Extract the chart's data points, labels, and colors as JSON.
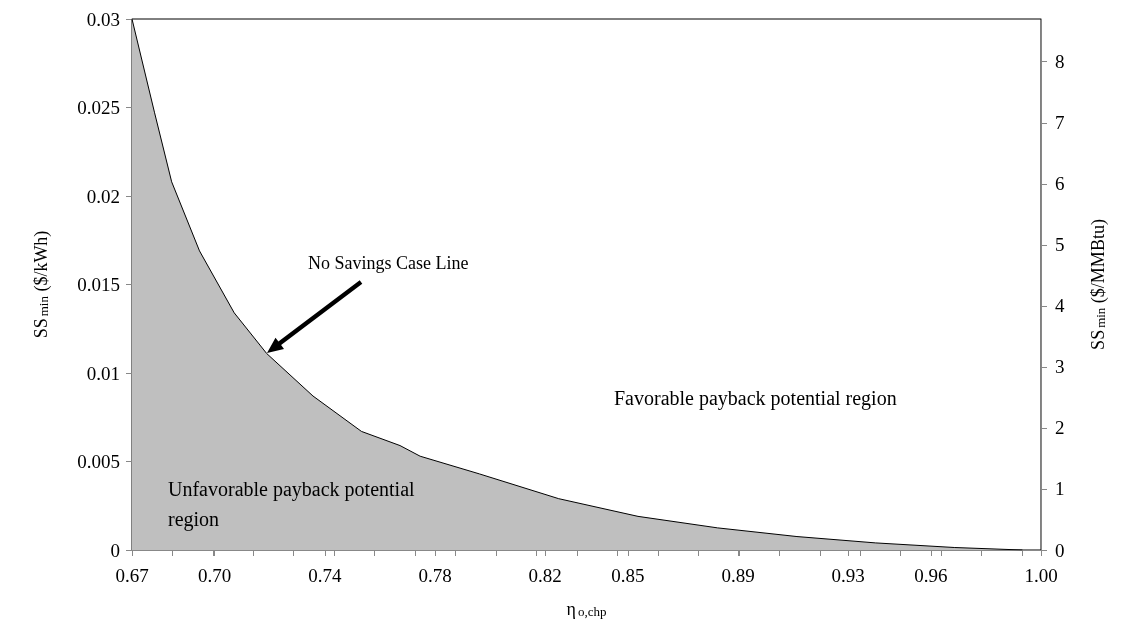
{
  "chart_data": {
    "type": "area",
    "xlabel": "η$_{o,chp}$",
    "ylabel": "SS$_{min}$ ($/kWh)",
    "y2label": "SS$_{min}$ ($/MMBtu)",
    "x": [
      0.67,
      0.6782,
      0.6844,
      0.6945,
      0.7071,
      0.7189,
      0.7357,
      0.7533,
      0.7673,
      0.7746,
      0.7961,
      0.8249,
      0.8537,
      0.8826,
      0.9114,
      0.94,
      0.9687,
      0.9931
    ],
    "series": [
      {
        "color": "#bfbfbf",
        "values": [
          0.03,
          0.0247,
          0.0208,
          0.0169,
          0.0134,
          0.0111,
          0.0087,
          0.0067,
          0.0059,
          0.0053,
          0.0043,
          0.0029,
          0.0019,
          0.00125,
          0.00076,
          0.0004,
          0.00014,
          0
        ]
      }
    ],
    "xlim": [
      0.67,
      1.0
    ],
    "xticks": [
      0.67,
      {
        "value": 0.6847,
        "label": null
      },
      {
        "value": 0.6994,
        "label": null
      },
      {
        "value": 0.7,
        "label": "0.70"
      },
      {
        "value": 0.7141,
        "label": null
      },
      {
        "value": 0.7287,
        "label": null
      },
      {
        "value": 0.74,
        "label": "0.74"
      },
      {
        "value": 0.7434,
        "label": null
      },
      {
        "value": 0.7581,
        "label": null
      },
      {
        "value": 0.7728,
        "label": null
      },
      {
        "value": 0.78,
        "label": "0.78"
      },
      {
        "value": 0.7875,
        "label": null
      },
      {
        "value": 0.8022,
        "label": null
      },
      {
        "value": 0.8169,
        "label": null
      },
      {
        "value": 0.82,
        "label": "0.82"
      },
      {
        "value": 0.8315,
        "label": null
      },
      {
        "value": 0.85,
        "label": "0.85"
      },
      {
        "value": 0.8462,
        "label": null
      },
      {
        "value": 0.8609,
        "label": null
      },
      {
        "value": 0.8756,
        "label": null
      },
      {
        "value": 0.89,
        "label": "0.89"
      },
      {
        "value": 0.8903,
        "label": null
      },
      {
        "value": 0.905,
        "label": null
      },
      {
        "value": 0.9197,
        "label": null
      },
      {
        "value": 0.93,
        "label": "0.93"
      },
      {
        "value": 0.9343,
        "label": null
      },
      {
        "value": 0.949,
        "label": null
      },
      {
        "value": 0.96,
        "label": "0.96"
      },
      {
        "value": 0.9637,
        "label": null
      },
      {
        "value": 0.9784,
        "label": null
      },
      {
        "value": 0.9931,
        "label": null
      },
      {
        "value": 1.0,
        "label": "1.00"
      }
    ],
    "ylim": [
      0,
      0.03
    ],
    "yticks": [
      0,
      0.005,
      0.01,
      0.015,
      0.02,
      0.025,
      0.03
    ],
    "y2lim": [
      0,
      8.7
    ],
    "y2ticks": [
      0,
      1,
      2,
      3,
      4,
      5,
      6,
      7,
      8
    ],
    "annotations": [
      "No Savings Case Line",
      "Favorable payback potential region",
      "Unfavorable payback potential region"
    ],
    "marker": "none",
    "line_style": "solid"
  }
}
